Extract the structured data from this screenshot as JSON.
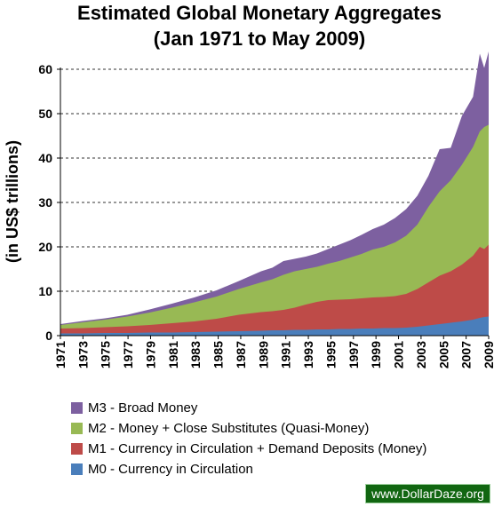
{
  "chart_data": {
    "type": "area",
    "stacked": true,
    "title": [
      "Estimated Global Monetary Aggregates",
      "(Jan 1971 to May 2009)"
    ],
    "ylabel": "(in US$ trillions)",
    "xlabel": "",
    "ylim": [
      0,
      60
    ],
    "yticks": [
      0,
      10,
      20,
      30,
      40,
      50,
      60
    ],
    "xtick_labels": [
      "1971",
      "1973",
      "1975",
      "1977",
      "1979",
      "1981",
      "1983",
      "1985",
      "1987",
      "1989",
      "1991",
      "1993",
      "1995",
      "1997",
      "1999",
      "2001",
      "2003",
      "2005",
      "2007",
      "2009"
    ],
    "grid": "horizontal dashed",
    "legend_position": "bottom",
    "x": [
      1971,
      1973,
      1975,
      1977,
      1979,
      1981,
      1983,
      1985,
      1987,
      1989,
      1990,
      1991,
      1992,
      1993,
      1994,
      1995,
      1996,
      1997,
      1998,
      1999,
      2000,
      2001,
      2002,
      2003,
      2004,
      2005,
      2006,
      2007,
      2008,
      2008.6,
      2009,
      2009.4
    ],
    "series": [
      {
        "name": "M0 - Currency in Circulation",
        "color": "#4a7ebb",
        "values": [
          0.5,
          0.5,
          0.6,
          0.6,
          0.7,
          0.7,
          0.8,
          0.9,
          1.0,
          1.1,
          1.2,
          1.2,
          1.3,
          1.3,
          1.4,
          1.4,
          1.5,
          1.5,
          1.6,
          1.6,
          1.7,
          1.7,
          1.8,
          2.0,
          2.3,
          2.6,
          2.9,
          3.2,
          3.6,
          4.0,
          4.2,
          4.3
        ]
      },
      {
        "name": "M1 - Currency in Circulation + Demand Deposits (Money)",
        "color": "#be4b48",
        "values": [
          1.6,
          1.7,
          1.9,
          2.1,
          2.4,
          2.8,
          3.2,
          3.8,
          4.7,
          5.3,
          5.5,
          5.8,
          6.3,
          7.0,
          7.6,
          8.0,
          8.1,
          8.2,
          8.4,
          8.6,
          8.7,
          8.9,
          9.4,
          10.5,
          12.0,
          13.5,
          14.5,
          16.0,
          18.0,
          20.0,
          19.5,
          20.5
        ]
      },
      {
        "name": "M2 - Money + Close Substitutes (Quasi-Money)",
        "color": "#98b954",
        "values": [
          2.4,
          3.0,
          3.6,
          4.3,
          5.2,
          6.3,
          7.5,
          8.8,
          10.5,
          12.0,
          12.7,
          13.7,
          14.5,
          15.0,
          15.5,
          16.2,
          16.8,
          17.6,
          18.4,
          19.4,
          20.0,
          21.0,
          22.5,
          25.0,
          29.0,
          32.5,
          35.0,
          38.5,
          42.5,
          46.0,
          47.0,
          47.5
        ]
      },
      {
        "name": "M3 - Broad Money",
        "color": "#7d60a0",
        "values": [
          2.6,
          3.3,
          3.9,
          4.7,
          5.9,
          7.2,
          8.6,
          10.2,
          12.3,
          14.5,
          15.3,
          16.8,
          17.3,
          17.8,
          18.5,
          19.5,
          20.5,
          21.5,
          22.7,
          24.0,
          25.0,
          26.5,
          28.5,
          31.5,
          36.0,
          40.5,
          43.5,
          48.0,
          55.0,
          62.0,
          61.5,
          62.5
        ]
      }
    ]
  },
  "watermark": "www.DollarDaze.org"
}
